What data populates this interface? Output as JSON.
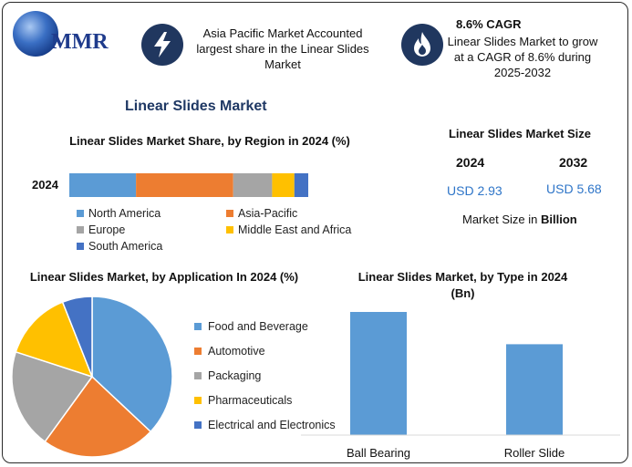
{
  "header": {
    "logo_text": "MMR",
    "fact1": "Asia Pacific Market Accounted largest share in the Linear Slides Market",
    "fact2_title": "8.6% CAGR",
    "fact2": "Linear Slides Market to grow at a CAGR of 8.6% during 2025-2032",
    "icon1": "lightning-bolt-icon",
    "icon2": "flame-icon"
  },
  "main_title": "Linear Slides Market",
  "market_size": {
    "title": "Linear Slides Market Size",
    "year1": "2024",
    "year2": "2032",
    "value1": "USD 2.93",
    "value2": "USD 5.68",
    "note_prefix": "Market Size in ",
    "note_bold": "Billion"
  },
  "colors": {
    "blue": "#5b9bd5",
    "orange": "#ed7d31",
    "gray": "#a5a5a5",
    "yellow": "#ffc000",
    "darkblue": "#4472c4",
    "badge": "#20375f"
  },
  "chart_data": [
    {
      "type": "bar",
      "orientation": "horizontal-stacked",
      "title": "Linear Slides Market Share, by Region in 2024 (%)",
      "categories": [
        "2024"
      ],
      "series": [
        {
          "name": "North America",
          "values": [
            24
          ]
        },
        {
          "name": "Asia-Pacific",
          "values": [
            35
          ]
        },
        {
          "name": "Europe",
          "values": [
            14
          ]
        },
        {
          "name": "Middle East and Africa",
          "values": [
            8
          ]
        },
        {
          "name": "South America",
          "values": [
            5
          ]
        }
      ],
      "legend_position": "bottom"
    },
    {
      "type": "pie",
      "title": "Linear Slides Market, by Application In 2024 (%)",
      "labels": [
        "Food and Beverage",
        "Automotive",
        "Packaging",
        "Pharmaceuticals",
        "Electrical and Electronics"
      ],
      "values": [
        37,
        23,
        20,
        14,
        6
      ],
      "legend_position": "right"
    },
    {
      "type": "bar",
      "title": "Linear Slides Market, by Type in 2024 (Bn)",
      "categories": [
        "Ball Bearing",
        "Roller Slide"
      ],
      "values": [
        1.64,
        1.21
      ],
      "ylim": [
        0,
        1.64
      ],
      "grid": false
    }
  ]
}
